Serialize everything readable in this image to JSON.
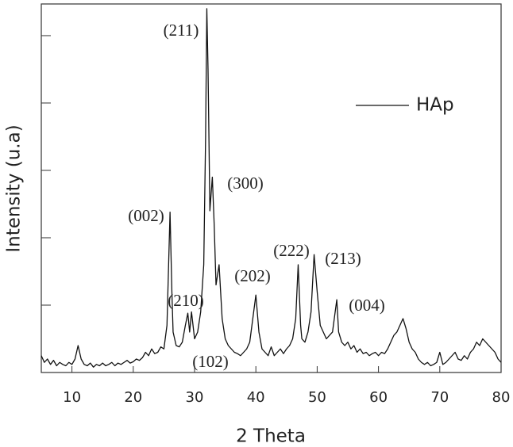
{
  "chart_data": {
    "type": "line",
    "x_label": "2 Theta",
    "y_label": "Intensity (u.a)",
    "xlim": [
      5,
      80
    ],
    "xticks": [
      10,
      20,
      30,
      40,
      50,
      60,
      70,
      80
    ],
    "ylim": [
      0,
      5.47
    ],
    "yticks": [
      1,
      2,
      3,
      4,
      5
    ],
    "ytick_labels": false,
    "legend": "upper right",
    "x": [
      5,
      5.5,
      6,
      6.5,
      7,
      7.5,
      8,
      8.5,
      9,
      9.5,
      10,
      10.5,
      11,
      11.5,
      12,
      12.5,
      13,
      13.5,
      14,
      14.5,
      15,
      15.5,
      16,
      16.5,
      17,
      17.5,
      18,
      18.5,
      19,
      19.5,
      20,
      20.5,
      21,
      21.5,
      22,
      22.5,
      23,
      23.5,
      24,
      24.5,
      25,
      25.5,
      26,
      26.3,
      26.5,
      27,
      27.5,
      28,
      28.5,
      28.9,
      29.2,
      29.5,
      30,
      30.5,
      31,
      31.5,
      31.8,
      32,
      32.2,
      32.5,
      32.9,
      33.2,
      33.5,
      34,
      34.5,
      35,
      35.5,
      36,
      36.5,
      37,
      37.5,
      38,
      38.5,
      39,
      39.5,
      40,
      40.5,
      41,
      41.5,
      42,
      42.5,
      43,
      43.5,
      44,
      44.5,
      45,
      45.5,
      46,
      46.5,
      46.9,
      47.3,
      47.5,
      48,
      48.5,
      49,
      49.5,
      50,
      50.5,
      51,
      51.5,
      52,
      52.5,
      53.2,
      53.5,
      54,
      54.5,
      55,
      55.5,
      56,
      56.5,
      57,
      57.5,
      58,
      58.5,
      59,
      59.5,
      60,
      60.5,
      61,
      61.5,
      62,
      62.5,
      63,
      63.5,
      64,
      64.5,
      65,
      65.5,
      66,
      66.5,
      67,
      67.5,
      68,
      68.5,
      69,
      69.5,
      70,
      70.5,
      71,
      71.5,
      72,
      72.5,
      73,
      73.5,
      74,
      74.5,
      75,
      75.5,
      76,
      76.5,
      77,
      77.5,
      78,
      78.5,
      79,
      79.5,
      80
    ],
    "series": [
      {
        "name": "HAp",
        "color": "#111111",
        "values": [
          0.25,
          0.15,
          0.2,
          0.12,
          0.18,
          0.1,
          0.15,
          0.12,
          0.1,
          0.15,
          0.12,
          0.2,
          0.4,
          0.2,
          0.12,
          0.1,
          0.14,
          0.08,
          0.12,
          0.1,
          0.14,
          0.1,
          0.12,
          0.15,
          0.1,
          0.14,
          0.12,
          0.15,
          0.18,
          0.14,
          0.16,
          0.2,
          0.18,
          0.22,
          0.3,
          0.25,
          0.35,
          0.28,
          0.3,
          0.38,
          0.35,
          0.7,
          2.38,
          1.2,
          0.6,
          0.4,
          0.38,
          0.45,
          0.7,
          0.88,
          0.6,
          0.9,
          0.5,
          0.6,
          0.9,
          1.6,
          3.5,
          5.4,
          4.5,
          2.4,
          2.9,
          2.2,
          1.3,
          1.6,
          0.8,
          0.5,
          0.4,
          0.35,
          0.3,
          0.28,
          0.25,
          0.3,
          0.35,
          0.45,
          0.8,
          1.15,
          0.6,
          0.35,
          0.3,
          0.25,
          0.38,
          0.25,
          0.3,
          0.35,
          0.28,
          0.35,
          0.4,
          0.5,
          0.8,
          1.6,
          0.7,
          0.5,
          0.45,
          0.6,
          0.9,
          1.75,
          1.2,
          0.7,
          0.6,
          0.5,
          0.55,
          0.6,
          1.08,
          0.6,
          0.45,
          0.4,
          0.45,
          0.35,
          0.4,
          0.3,
          0.35,
          0.28,
          0.3,
          0.25,
          0.28,
          0.3,
          0.25,
          0.3,
          0.28,
          0.35,
          0.45,
          0.55,
          0.6,
          0.7,
          0.8,
          0.65,
          0.45,
          0.35,
          0.3,
          0.2,
          0.15,
          0.12,
          0.15,
          0.1,
          0.12,
          0.15,
          0.3,
          0.12,
          0.15,
          0.2,
          0.25,
          0.3,
          0.2,
          0.18,
          0.25,
          0.2,
          0.3,
          0.35,
          0.45,
          0.4,
          0.5,
          0.45,
          0.4,
          0.35,
          0.3,
          0.2,
          0.15
        ]
      }
    ],
    "annotations": [
      "(211)",
      "(300)",
      "(002)",
      "(222)",
      "(213)",
      "(202)",
      "(210)",
      "(004)",
      "(102)"
    ]
  }
}
